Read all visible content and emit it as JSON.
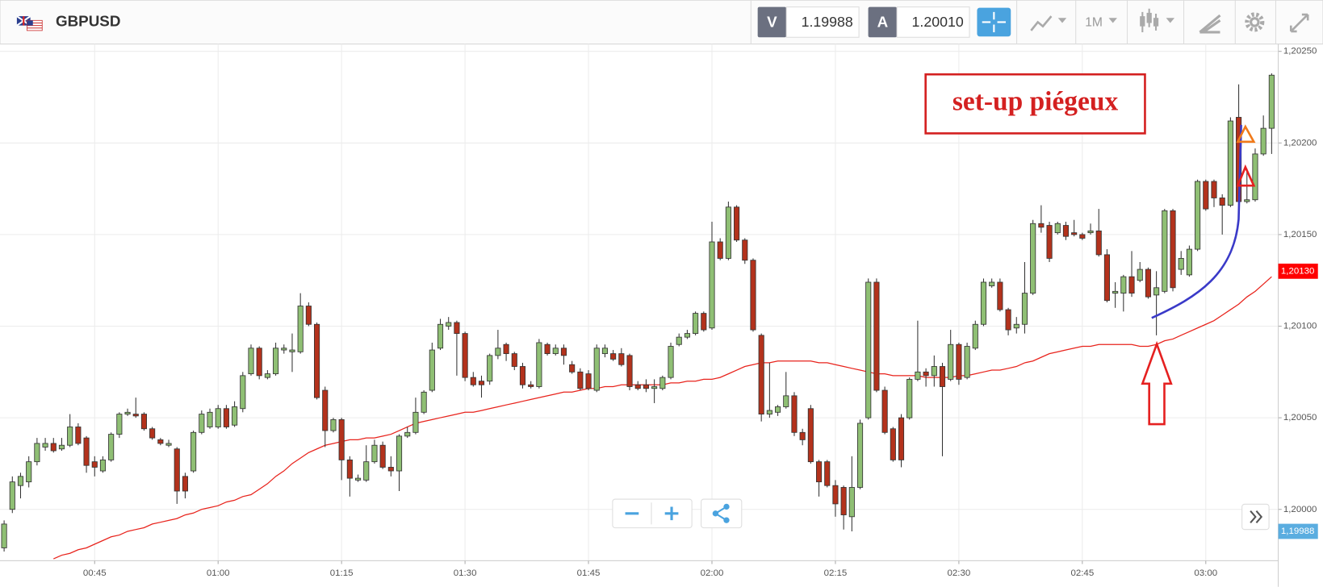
{
  "header": {
    "symbol": "GBPUSD",
    "bid_label": "V",
    "bid": "1.19988",
    "ask_label": "A",
    "ask": "1.20010",
    "timeframe": "1M"
  },
  "chart_data": {
    "type": "candlestick",
    "annotation": "set-up piégeux",
    "up_color": "#8fbf74",
    "down_color": "#b3321c",
    "grid": true,
    "categories": [
      null,
      null,
      null,
      null,
      null,
      null,
      null,
      null,
      null,
      null,
      null,
      "00:45",
      null,
      null,
      null,
      null,
      null,
      null,
      null,
      null,
      null,
      null,
      null,
      null,
      null,
      null,
      "01:00",
      null,
      null,
      null,
      null,
      null,
      null,
      null,
      null,
      null,
      null,
      null,
      null,
      null,
      null,
      "01:15",
      null,
      null,
      null,
      null,
      null,
      null,
      null,
      null,
      null,
      null,
      null,
      null,
      null,
      null,
      "01:30",
      null,
      null,
      null,
      null,
      null,
      null,
      null,
      null,
      null,
      null,
      null,
      null,
      null,
      null,
      "01:45",
      null,
      null,
      null,
      null,
      null,
      null,
      null,
      null,
      null,
      null,
      null,
      null,
      null,
      null,
      "02:00",
      null,
      null,
      null,
      null,
      null,
      null,
      null,
      null,
      null,
      null,
      null,
      null,
      null,
      null,
      "02:15",
      null,
      null,
      null,
      null,
      null,
      null,
      null,
      null,
      null,
      null,
      null,
      null,
      null,
      null,
      "02:30",
      null,
      null,
      null,
      null,
      null,
      null,
      null,
      null,
      null,
      null,
      null,
      null,
      null,
      null,
      "02:45",
      null,
      null,
      null,
      null,
      null,
      null,
      null,
      null,
      null,
      null,
      null,
      null,
      null,
      null,
      "03:00",
      null,
      null,
      null,
      null,
      null,
      null,
      null,
      null
    ],
    "open": [
      1.19979,
      1.2,
      1.20013,
      1.20015,
      1.20026,
      1.20034,
      1.20036,
      1.20033,
      1.20035,
      1.20045,
      1.20039,
      1.20026,
      1.20021,
      1.20027,
      1.20041,
      1.20052,
      1.20052,
      1.20052,
      1.20044,
      1.20038,
      1.20035,
      1.20033,
      1.20018,
      1.20021,
      1.20042,
      1.20045,
      1.20045,
      1.20055,
      1.20046,
      1.20055,
      1.20074,
      1.20088,
      1.20072,
      1.20074,
      1.20087,
      1.20086,
      1.20086,
      1.20111,
      1.20101,
      1.20065,
      1.20043,
      1.20049,
      1.20027,
      1.20016,
      1.20016,
      1.20026,
      1.20035,
      1.20023,
      1.20021,
      1.2004,
      1.20042,
      1.20053,
      1.20065,
      1.20088,
      1.201,
      1.20102,
      1.20096,
      1.20072,
      1.2007,
      1.2007,
      1.20084,
      1.2009,
      1.20085,
      1.20078,
      1.20068,
      1.20067,
      1.2009,
      1.20085,
      1.20088,
      1.20079,
      1.20075,
      1.20074,
      1.20065,
      1.20085,
      1.20085,
      1.20085,
      1.20084,
      1.20068,
      1.20068,
      1.20066,
      1.20066,
      1.20072,
      1.2009,
      1.20094,
      1.20096,
      1.20107,
      1.20099,
      1.20146,
      1.20137,
      1.20165,
      1.20147,
      1.20136,
      1.20095,
      1.20052,
      1.20053,
      1.20056,
      1.20062,
      1.20042,
      1.20055,
      1.20026,
      1.20026,
      1.20013,
      1.20012,
      1.19996,
      1.20012,
      1.2005,
      1.20124,
      1.20065,
      1.20044,
      1.2005,
      1.2005,
      1.20071,
      1.20075,
      1.20073,
      1.20078,
      1.20071,
      1.2009,
      1.20072,
      1.20088,
      1.20101,
      1.20122,
      1.20124,
      1.20109,
      1.20099,
      1.20101,
      1.20118,
      1.20156,
      1.20155,
      1.20151,
      1.20155,
      1.20151,
      1.2015,
      1.20151,
      1.20152,
      1.20139,
      1.20118,
      1.20118,
      1.20127,
      1.20125,
      1.20131,
      1.20117,
      1.20119,
      1.20163,
      1.20131,
      1.20128,
      1.20142,
      1.20179,
      1.20179,
      1.2017,
      1.20166,
      1.20214,
      1.20168,
      1.20169,
      1.20194,
      1.20208
    ],
    "high": [
      1.19994,
      1.20018,
      1.2002,
      1.20029,
      1.20039,
      1.20039,
      1.20039,
      1.20039,
      1.20052,
      1.20047,
      1.2004,
      1.20029,
      1.20029,
      1.20042,
      1.20053,
      1.20055,
      1.20061,
      1.20053,
      1.20045,
      1.20039,
      1.20038,
      1.20034,
      1.2002,
      1.20043,
      1.20054,
      1.20055,
      1.20057,
      1.20057,
      1.20059,
      1.20075,
      1.2009,
      1.20089,
      1.20076,
      1.20091,
      1.2009,
      1.20096,
      1.20118,
      1.20113,
      1.20102,
      1.20067,
      1.2005,
      1.2005,
      1.20029,
      1.20019,
      1.20035,
      1.20038,
      1.20037,
      1.20029,
      1.20041,
      1.20045,
      1.20061,
      1.20065,
      1.20091,
      1.20104,
      1.20105,
      1.20103,
      1.20097,
      1.20075,
      1.20073,
      1.20085,
      1.20098,
      1.20091,
      1.20086,
      1.2008,
      1.2007,
      1.20093,
      1.20091,
      1.2009,
      1.2009,
      1.20081,
      1.20077,
      1.20076,
      1.2009,
      1.2009,
      1.20087,
      1.20088,
      1.20085,
      1.2007,
      1.20071,
      1.20071,
      1.20073,
      1.20091,
      1.20096,
      1.20098,
      1.20108,
      1.20108,
      1.20157,
      1.20148,
      1.20168,
      1.20166,
      1.20148,
      1.20137,
      1.20096,
      1.2008,
      1.20057,
      1.20075,
      1.20064,
      1.20044,
      1.20057,
      1.20027,
      1.20027,
      1.20016,
      1.20013,
      1.20029,
      1.20049,
      1.20126,
      1.20126,
      1.20067,
      1.20045,
      1.20052,
      1.20072,
      1.20103,
      1.20077,
      1.20084,
      1.2008,
      1.20098,
      1.20091,
      1.20091,
      1.20103,
      1.20126,
      1.20126,
      1.20126,
      1.2011,
      1.20105,
      1.20135,
      1.20158,
      1.20166,
      1.20157,
      1.20157,
      1.20157,
      1.20158,
      1.20151,
      1.20156,
      1.20164,
      1.20142,
      1.20124,
      1.20128,
      1.20141,
      1.20135,
      1.20132,
      1.2013,
      1.20164,
      1.20164,
      1.20141,
      1.20144,
      1.2018,
      1.2018,
      1.2018,
      1.20172,
      1.20214,
      1.20232,
      1.20186,
      1.20197,
      1.20215,
      1.20238
    ],
    "low": [
      1.19977,
      1.19998,
      1.20006,
      1.20012,
      1.20024,
      1.20032,
      1.20031,
      1.20032,
      1.20034,
      1.20035,
      1.2002,
      1.20018,
      1.2002,
      1.20026,
      1.20039,
      1.20051,
      1.2005,
      1.20043,
      1.20038,
      1.20035,
      1.20034,
      1.20003,
      1.20006,
      1.2002,
      1.20041,
      1.20044,
      1.20044,
      1.20044,
      1.20045,
      1.20053,
      1.20073,
      1.20071,
      1.20071,
      1.20073,
      1.20085,
      1.20075,
      1.20085,
      1.201,
      1.2006,
      1.20034,
      1.20042,
      1.20016,
      1.20007,
      1.20015,
      1.20015,
      1.20025,
      1.20022,
      1.20018,
      1.2001,
      1.20039,
      1.20041,
      1.20052,
      1.20064,
      1.20087,
      1.20098,
      1.20073,
      1.2007,
      1.20067,
      1.20061,
      1.20068,
      1.20082,
      1.20081,
      1.20076,
      1.20066,
      1.20066,
      1.20066,
      1.20084,
      1.20084,
      1.20079,
      1.20074,
      1.20065,
      1.20065,
      1.20064,
      1.20083,
      1.20081,
      1.20078,
      1.20065,
      1.20065,
      1.20064,
      1.20058,
      1.20065,
      1.20071,
      1.20089,
      1.20093,
      1.20095,
      1.20097,
      1.20098,
      1.20136,
      1.20136,
      1.20146,
      1.20134,
      1.20097,
      1.20048,
      1.2005,
      1.20051,
      1.20055,
      1.2004,
      1.20035,
      1.20025,
      1.20007,
      1.20012,
      1.19996,
      1.19989,
      1.19988,
      1.20011,
      1.20049,
      1.20064,
      1.20041,
      1.20026,
      1.20023,
      1.20049,
      1.2007,
      1.20067,
      1.20067,
      1.20029,
      1.2007,
      1.20068,
      1.20071,
      1.20087,
      1.201,
      1.20121,
      1.20108,
      1.20095,
      1.20096,
      1.20096,
      1.20117,
      1.20151,
      1.20135,
      1.2015,
      1.20147,
      1.20149,
      1.20147,
      1.2015,
      1.20138,
      1.20113,
      1.2011,
      1.20108,
      1.20116,
      1.20124,
      1.20115,
      1.20095,
      1.20118,
      1.20119,
      1.20128,
      1.20127,
      1.20141,
      1.20163,
      1.20165,
      1.2015,
      1.20165,
      1.20166,
      1.20167,
      1.20168,
      1.20193,
      1.20194
    ],
    "close": [
      1.19992,
      1.20015,
      1.20018,
      1.20026,
      1.20036,
      1.20036,
      1.20032,
      1.20035,
      1.20045,
      1.20036,
      1.20024,
      1.20023,
      1.20027,
      1.20041,
      1.20052,
      1.20053,
      1.20051,
      1.20044,
      1.20039,
      1.20036,
      1.20036,
      1.2001,
      1.2001,
      1.20042,
      1.20052,
      1.20053,
      1.20055,
      1.20045,
      1.20056,
      1.20073,
      1.20088,
      1.20073,
      1.20074,
      1.20088,
      1.20088,
      1.20087,
      1.20111,
      1.20101,
      1.20061,
      1.20043,
      1.20049,
      1.20027,
      1.20017,
      1.20017,
      1.20026,
      1.20035,
      1.20023,
      1.20021,
      1.2004,
      1.20042,
      1.20053,
      1.20064,
      1.20087,
      1.20101,
      1.20102,
      1.20096,
      1.20072,
      1.20068,
      1.20068,
      1.20084,
      1.20088,
      1.20085,
      1.20078,
      1.20068,
      1.20067,
      1.20091,
      1.20085,
      1.20088,
      1.20084,
      1.20075,
      1.20066,
      1.20066,
      1.20088,
      1.20088,
      1.20082,
      1.20079,
      1.20067,
      1.20066,
      1.20066,
      1.20067,
      1.20072,
      1.20089,
      1.20094,
      1.20096,
      1.20107,
      1.20098,
      1.20146,
      1.20137,
      1.20165,
      1.20147,
      1.20136,
      1.20098,
      1.20052,
      1.20054,
      1.20056,
      1.20062,
      1.20042,
      1.20038,
      1.20026,
      1.20015,
      1.20013,
      1.20003,
      1.19997,
      1.20012,
      1.20047,
      1.20124,
      1.20065,
      1.20042,
      1.20027,
      1.20027,
      1.20071,
      1.20075,
      1.20073,
      1.20078,
      1.20067,
      1.2009,
      1.20071,
      1.20089,
      1.20101,
      1.20124,
      1.20124,
      1.20109,
      1.20098,
      1.20101,
      1.20118,
      1.20156,
      1.20154,
      1.20137,
      1.20156,
      1.20149,
      1.2015,
      1.20148,
      1.20152,
      1.20139,
      1.20114,
      1.20119,
      1.20127,
      1.20118,
      1.20131,
      1.20116,
      1.20121,
      1.20163,
      1.20121,
      1.20137,
      1.20142,
      1.20179,
      1.20164,
      1.2017,
      1.20166,
      1.20212,
      1.20168,
      1.20169,
      1.20194,
      1.20208,
      1.20237
    ],
    "ma": {
      "color": "#e8231c",
      "values": [
        null,
        null,
        null,
        null,
        null,
        null,
        1.19973,
        1.19975,
        1.19976,
        1.19978,
        1.19979,
        1.19981,
        1.19983,
        1.19985,
        1.19986,
        1.19988,
        1.19989,
        1.1999,
        1.19992,
        1.19993,
        1.19994,
        1.19995,
        1.19997,
        1.19998,
        1.2,
        1.20001,
        1.20002,
        1.20004,
        1.20005,
        1.20007,
        1.20008,
        1.20011,
        1.20014,
        1.20018,
        1.20021,
        1.20025,
        1.20028,
        1.20031,
        1.20033,
        1.20035,
        1.20036,
        1.20037,
        1.20038,
        1.20038,
        1.20039,
        1.20039,
        1.2004,
        1.20041,
        1.20043,
        1.20045,
        1.20047,
        1.20048,
        1.20049,
        1.2005,
        1.20051,
        1.20052,
        1.20053,
        1.20053,
        1.20054,
        1.20055,
        1.20056,
        1.20057,
        1.20058,
        1.20059,
        1.2006,
        1.20061,
        1.20062,
        1.20063,
        1.20064,
        1.20064,
        1.20065,
        1.20066,
        1.20066,
        1.20067,
        1.20067,
        1.20068,
        1.20068,
        1.20068,
        1.20068,
        1.20068,
        1.20068,
        1.20069,
        1.20069,
        1.2007,
        1.2007,
        1.20071,
        1.20071,
        1.20072,
        1.20074,
        1.20076,
        1.20078,
        1.20079,
        1.2008,
        1.2008,
        1.20081,
        1.20081,
        1.20081,
        1.20081,
        1.20081,
        1.2008,
        1.2008,
        1.20079,
        1.20078,
        1.20077,
        1.20076,
        1.20075,
        1.20074,
        1.20074,
        1.20073,
        1.20073,
        1.20073,
        1.20073,
        1.20072,
        1.20072,
        1.20072,
        1.20072,
        1.20073,
        1.20073,
        1.20074,
        1.20075,
        1.20076,
        1.20076,
        1.20077,
        1.20078,
        1.2008,
        1.20081,
        1.20083,
        1.20085,
        1.20086,
        1.20087,
        1.20088,
        1.20089,
        1.20089,
        1.2009,
        1.2009,
        1.2009,
        1.2009,
        1.2009,
        1.20089,
        1.20089,
        1.2009,
        1.20092,
        1.20093,
        1.20095,
        1.20097,
        1.20099,
        1.20101,
        1.20103,
        1.20106,
        1.20109,
        1.20112,
        1.20116,
        1.20119,
        1.20123,
        1.20127
      ]
    },
    "price_markers": [
      {
        "value": 1.2013,
        "label": "1,20130",
        "color": "#ff0000"
      },
      {
        "value": 1.19988,
        "label": "1,19988",
        "color": "#5aade0"
      }
    ],
    "ylim": [
      1.19972,
      1.20254
    ],
    "yticks": [
      {
        "value": 1.2,
        "label": "1,20000"
      },
      {
        "value": 1.2005,
        "label": "1,20050"
      },
      {
        "value": 1.201,
        "label": "1,20100"
      },
      {
        "value": 1.2015,
        "label": "1,20150"
      },
      {
        "value": 1.202,
        "label": "1,20200"
      },
      {
        "value": 1.2025,
        "label": "1,20250"
      }
    ]
  }
}
